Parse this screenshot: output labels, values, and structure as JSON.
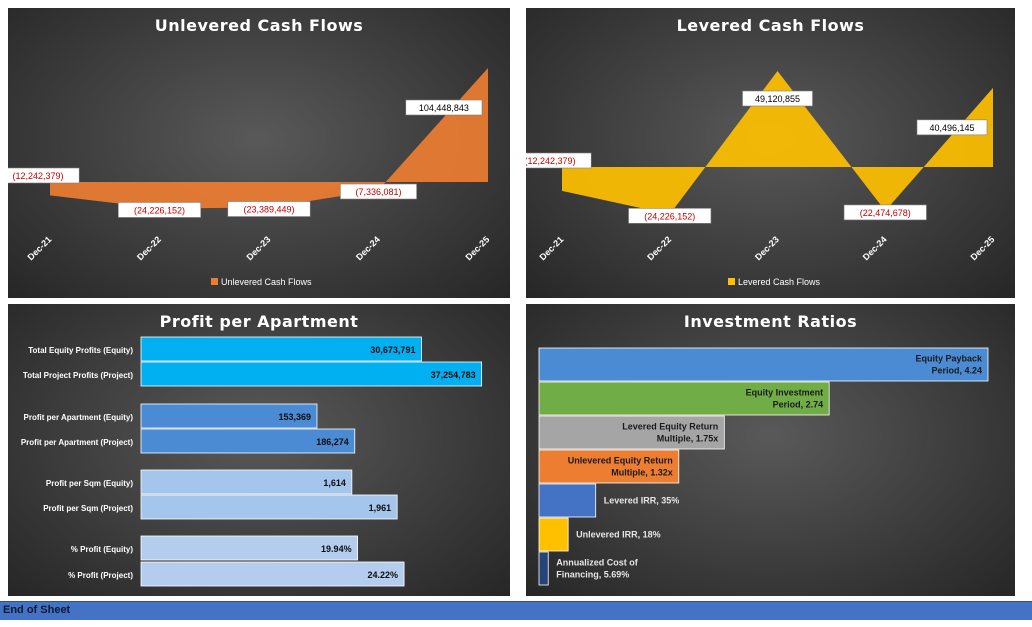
{
  "charts": [
    {
      "id": "unlevered",
      "type": "area",
      "title": "Unlevered Cash Flows",
      "categories": [
        "Dec-21",
        "Dec-22",
        "Dec-23",
        "Dec-24",
        "Dec-25"
      ],
      "values": [
        -12242379,
        -24226152,
        -23389449,
        -7336081,
        104448843
      ],
      "labels": [
        "(12,242,379)",
        "(24,226,152)",
        "(23,389,449)",
        "(7,336,081)",
        "104,448,843"
      ],
      "legend": "Unlevered Cash Flows",
      "color": "#ed7d31",
      "ylim": [
        -30000000,
        120000000
      ]
    },
    {
      "id": "levered",
      "type": "area",
      "title": "Levered Cash Flows",
      "categories": [
        "Dec-21",
        "Dec-22",
        "Dec-23",
        "Dec-24",
        "Dec-25"
      ],
      "values": [
        -12242379,
        -24226152,
        49120855,
        -22474678,
        40496145
      ],
      "labels": [
        "(12,242,379)",
        "(24,226,152)",
        "49,120,855",
        "(22,474,678)",
        "40,496,145"
      ],
      "legend": "Levered Cash Flows",
      "color": "#ffc000",
      "ylim": [
        -30000000,
        70000000
      ]
    }
  ],
  "profit_chart": {
    "type": "bar",
    "title": "Profit per Apartment",
    "groups": [
      {
        "color": "#00b0f0",
        "items": [
          {
            "label": "Total Equity Profits (Equity)",
            "value": 30673791,
            "display": "30,673,791"
          },
          {
            "label": "Total Project Profits (Project)",
            "value": 37254783,
            "display": "37,254,783"
          }
        ]
      },
      {
        "color": "#4a8bd4",
        "items": [
          {
            "label": "Profit per Apartment (Equity)",
            "value": 153369,
            "display": "153,369"
          },
          {
            "label": "Profit per Apartment (Project)",
            "value": 186274,
            "display": "186,274"
          }
        ]
      },
      {
        "color": "#a4c6ec",
        "items": [
          {
            "label": "Profit per Sqm (Equity)",
            "value": 1614,
            "display": "1,614"
          },
          {
            "label": "Profit per Sqm (Project)",
            "value": 1961,
            "display": "1,961"
          }
        ]
      },
      {
        "color": "#b4cdef",
        "items": [
          {
            "label": "% Profit (Equity)",
            "value": 19.94,
            "display": "19.94%"
          },
          {
            "label": "% Profit (Project)",
            "value": 24.22,
            "display": "24.22%"
          }
        ]
      }
    ]
  },
  "ratios_chart": {
    "type": "bar",
    "title": "Investment Ratios",
    "items": [
      {
        "lines": [
          "Equity Payback",
          "Period, 4.24"
        ],
        "value": 4.24,
        "color": "#4a8bd4",
        "inside": true
      },
      {
        "lines": [
          "Equity Investment",
          "Period, 2.74"
        ],
        "value": 2.74,
        "color": "#70ad47",
        "inside": true
      },
      {
        "lines": [
          "Levered Equity Return",
          "Multiple, 1.75x"
        ],
        "value": 1.75,
        "color": "#a5a5a5",
        "inside": true
      },
      {
        "lines": [
          "Unlevered Equity Return",
          "Multiple, 1.32x"
        ],
        "value": 1.32,
        "color": "#ed7d31",
        "inside": true
      },
      {
        "lines": [
          "Levered IRR, 35%"
        ],
        "value": 0.35,
        "color": "#4472c4",
        "inside": false
      },
      {
        "lines": [
          "Unlevered IRR, 18%"
        ],
        "value": 0.18,
        "color": "#ffc000",
        "inside": false
      },
      {
        "lines": [
          "Annualized Cost of",
          "Financing, 5.69%"
        ],
        "value": 0.0569,
        "color": "#264478",
        "inside": false
      }
    ]
  },
  "footer": {
    "text": "End of Sheet"
  }
}
